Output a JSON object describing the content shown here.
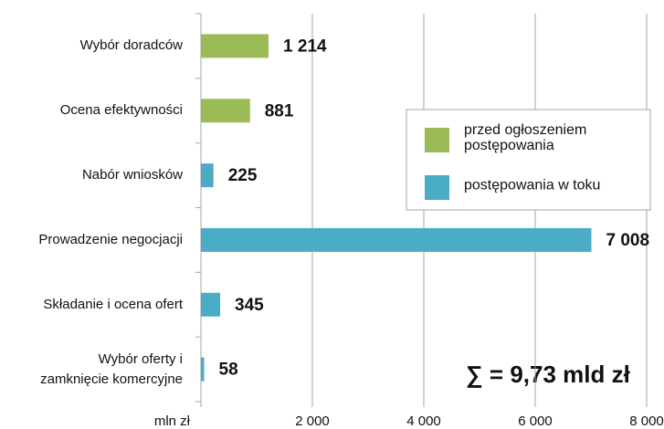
{
  "chart_data": {
    "type": "barh",
    "categories": [
      "Wybór doradców",
      "Ocena efektywności",
      "Nabór wniosków",
      "Prowadzenie negocjacji",
      "Składanie i ocena ofert",
      "Wybór oferty i\nzamknięcie komercyjne"
    ],
    "series": [
      {
        "name": "przed ogłoszeniem postępowania",
        "color": "#9bbb59",
        "values": [
          1214,
          881,
          null,
          null,
          null,
          null
        ],
        "value_labels": [
          "1 214",
          "881",
          null,
          null,
          null,
          null
        ]
      },
      {
        "name": "postępowania w toku",
        "color": "#4bacc6",
        "values": [
          null,
          null,
          225,
          7008,
          345,
          58
        ],
        "value_labels": [
          null,
          null,
          "225",
          "7 008",
          "345",
          "58"
        ]
      }
    ],
    "xlabel": "mln zł",
    "xlim": [
      0,
      8000
    ],
    "xticks": [
      {
        "value": 2000,
        "label": "2 000"
      },
      {
        "value": 4000,
        "label": "4 000"
      },
      {
        "value": 6000,
        "label": "6 000"
      },
      {
        "value": 8000,
        "label": "8 000"
      }
    ],
    "grid": true,
    "legend": "upper right",
    "annotation": "∑ = 9,73 mld zł"
  }
}
